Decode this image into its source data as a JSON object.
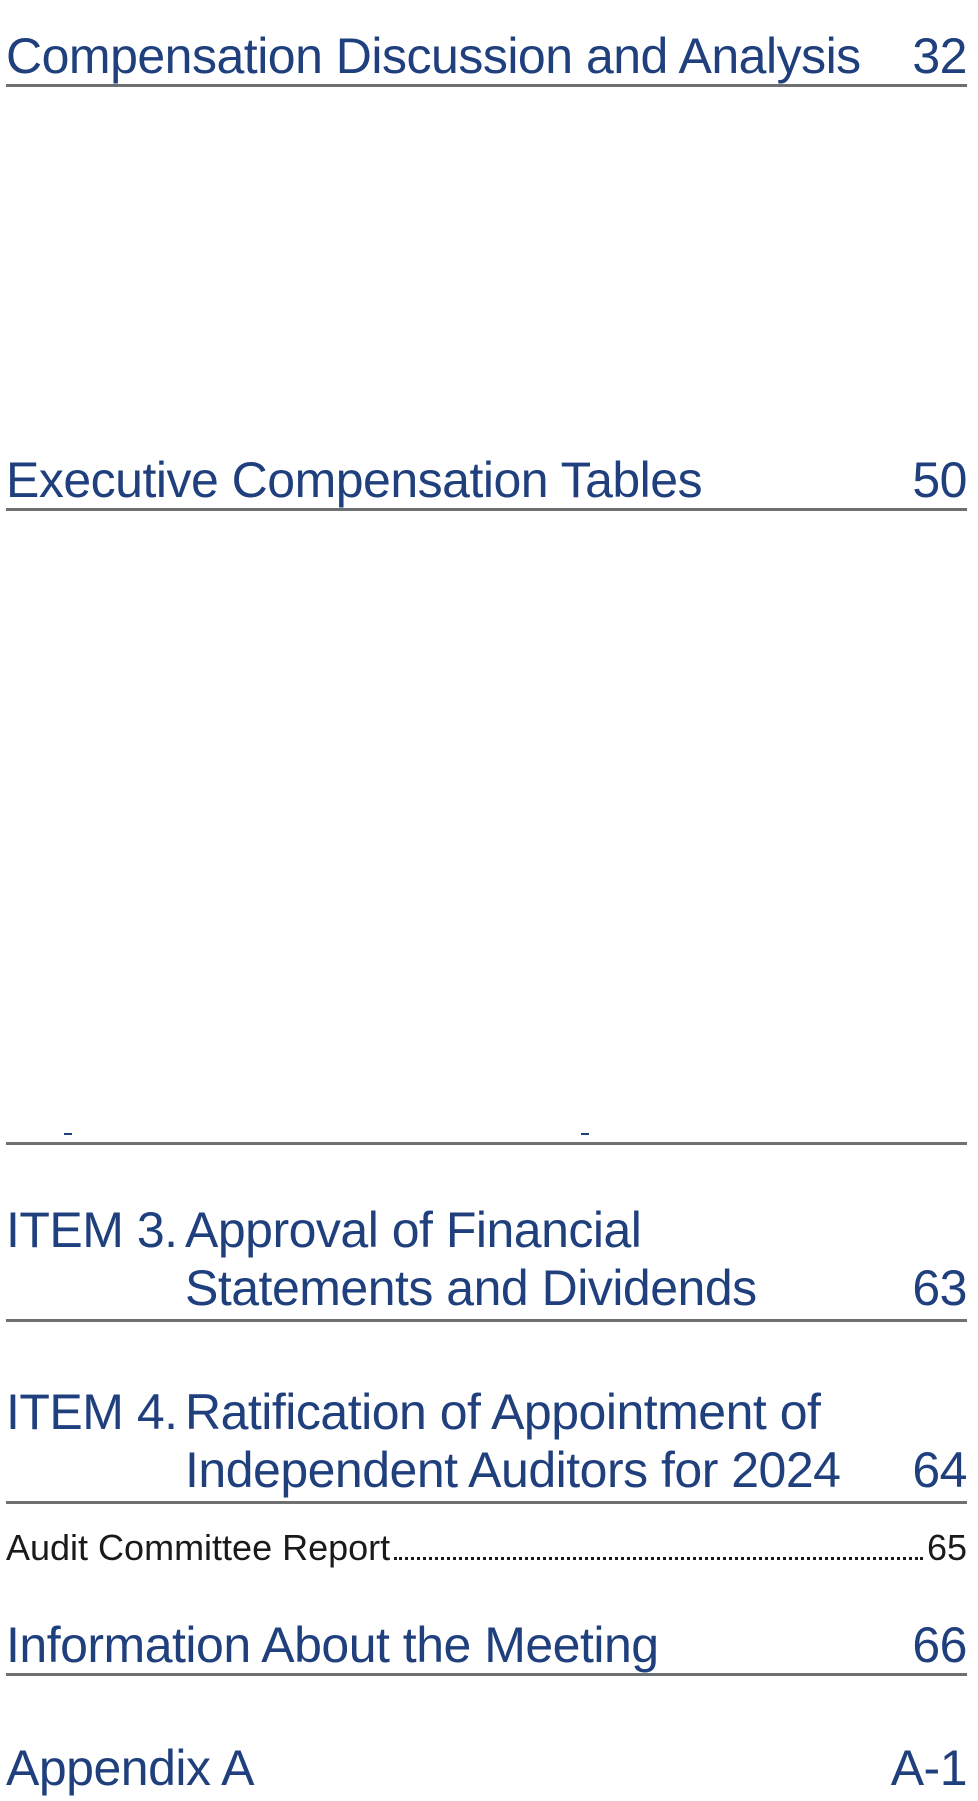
{
  "toc": {
    "cda": {
      "title": "Compensation Discussion and Analysis",
      "page": "32"
    },
    "ect": {
      "title": "Executive Compensation Tables",
      "page": "50"
    },
    "item3": {
      "number": "ITEM 3.",
      "line1": "Approval of Financial",
      "line2": "Statements and Dividends",
      "page": "63"
    },
    "item4": {
      "number": "ITEM 4.",
      "line1": "Ratification of Appointment of",
      "line2": "Independent Auditors for 2024",
      "page": "64"
    },
    "audit_committee": {
      "title": "Audit Committee Report",
      "page": "65"
    },
    "meeting": {
      "title": "Information About the Meeting",
      "page": "66"
    },
    "appendix": {
      "title": "Appendix A",
      "page": "A-1"
    }
  }
}
